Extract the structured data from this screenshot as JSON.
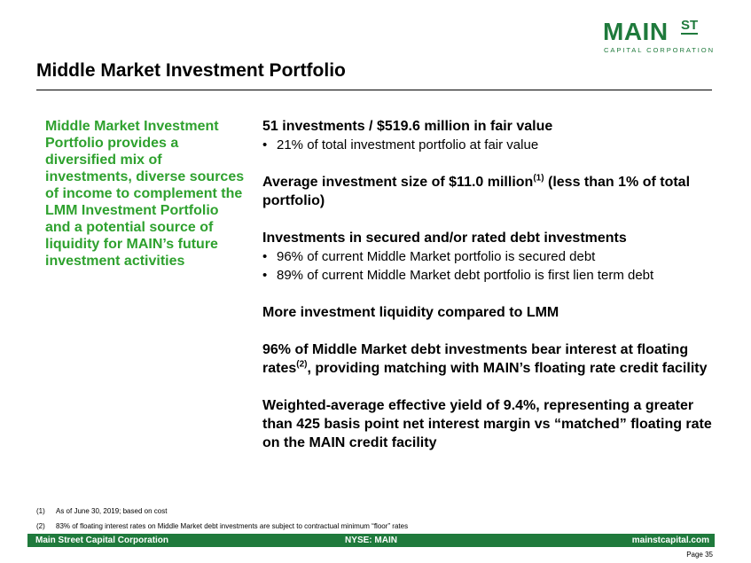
{
  "logo": {
    "main": "MAIN",
    "st": "ST",
    "sub": "CAPITAL CORPORATION"
  },
  "title": "Middle Market Investment Portfolio",
  "sidebar": {
    "text": "Middle Market Investment Portfolio provides a diversified mix of investments, diverse sources of income to complement the LMM Investment Portfolio and a potential source of liquidity for MAIN’s future investment activities"
  },
  "main": {
    "s1": {
      "heading": "51 investments / $519.6 million in fair value",
      "bullets": [
        "21% of total investment portfolio at fair value"
      ]
    },
    "s2": {
      "heading_pre": "Average investment size of $11.0 million",
      "sup": "(1)",
      "heading_post": " (less than 1% of total portfolio)"
    },
    "s3": {
      "heading": "Investments in secured and/or rated debt investments",
      "bullets": [
        "96% of current Middle Market portfolio is secured debt",
        "89% of current Middle Market debt portfolio is first lien term debt"
      ]
    },
    "s4": {
      "heading": "More investment liquidity compared to LMM"
    },
    "s5": {
      "heading_pre": "96% of Middle Market debt investments bear interest at floating rates",
      "sup": "(2)",
      "heading_post": ", providing matching with MAIN’s floating rate credit facility"
    },
    "s6": {
      "heading": "Weighted-average effective yield of 9.4%, representing a greater than 425 basis point net interest margin vs “matched” floating rate on the MAIN credit facility"
    }
  },
  "footnotes": [
    {
      "num": "(1)",
      "text": "As of June 30, 2019; based on cost"
    },
    {
      "num": "(2)",
      "text": "83% of floating interest rates on Middle Market debt investments are subject to contractual minimum “floor” rates"
    }
  ],
  "footer": {
    "left": "Main Street Capital Corporation",
    "center": "NYSE: MAIN",
    "right": "mainstcapital.com"
  },
  "page": "Page  35",
  "colors": {
    "brand_green": "#1f7a3c",
    "sidebar_green": "#2ea12e"
  }
}
